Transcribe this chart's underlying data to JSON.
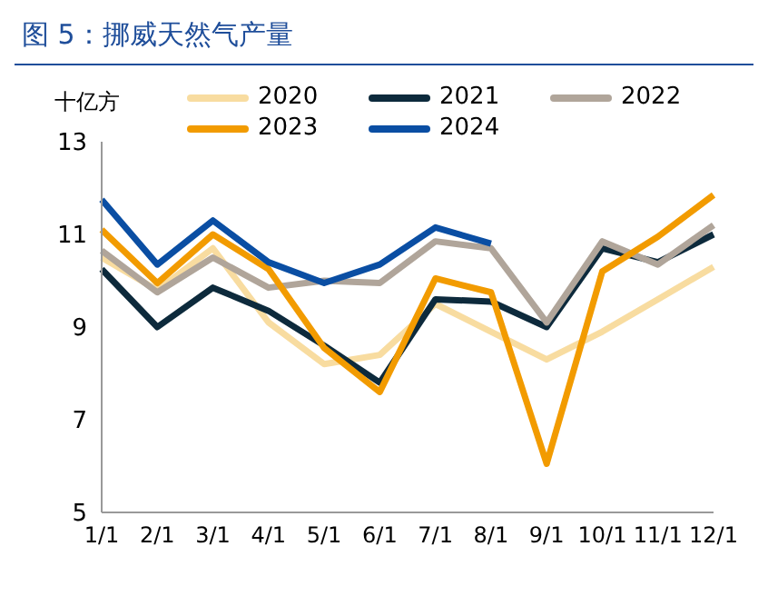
{
  "chart_data": {
    "type": "line",
    "title": "图 5：挪威天然气产量",
    "ylabel": "十亿方",
    "categories": [
      "1/1",
      "2/1",
      "3/1",
      "4/1",
      "5/1",
      "6/1",
      "7/1",
      "8/1",
      "9/1",
      "10/1",
      "11/1",
      "12/1"
    ],
    "series": [
      {
        "name": "2020",
        "color": "#f8dca0",
        "values": [
          10.5,
          9.8,
          10.7,
          9.1,
          8.2,
          8.4,
          9.5,
          8.9,
          8.3,
          8.9,
          9.6,
          10.3
        ]
      },
      {
        "name": "2021",
        "color": "#0d2a3c",
        "values": [
          10.25,
          9.0,
          9.85,
          9.35,
          8.6,
          7.8,
          9.6,
          9.55,
          9.0,
          10.7,
          10.4,
          11.0
        ]
      },
      {
        "name": "2022",
        "color": "#b0a59a",
        "values": [
          10.65,
          9.75,
          10.5,
          9.85,
          10.0,
          9.95,
          10.85,
          10.7,
          9.1,
          10.85,
          10.35,
          11.2
        ]
      },
      {
        "name": "2023",
        "color": "#f29b00",
        "values": [
          11.1,
          9.95,
          11.0,
          10.25,
          8.55,
          7.6,
          10.05,
          9.75,
          6.05,
          10.2,
          10.95,
          11.85
        ]
      },
      {
        "name": "2024",
        "color": "#0a4ea3",
        "values": [
          11.75,
          10.35,
          11.3,
          10.4,
          9.95,
          10.35,
          11.15,
          10.8,
          null,
          null,
          null,
          null
        ]
      }
    ],
    "ylim": [
      5,
      13
    ],
    "yticks": [
      5,
      7,
      9,
      11,
      13
    ],
    "grid": false,
    "legend": "top",
    "marker": "none",
    "line_style": "solid"
  }
}
